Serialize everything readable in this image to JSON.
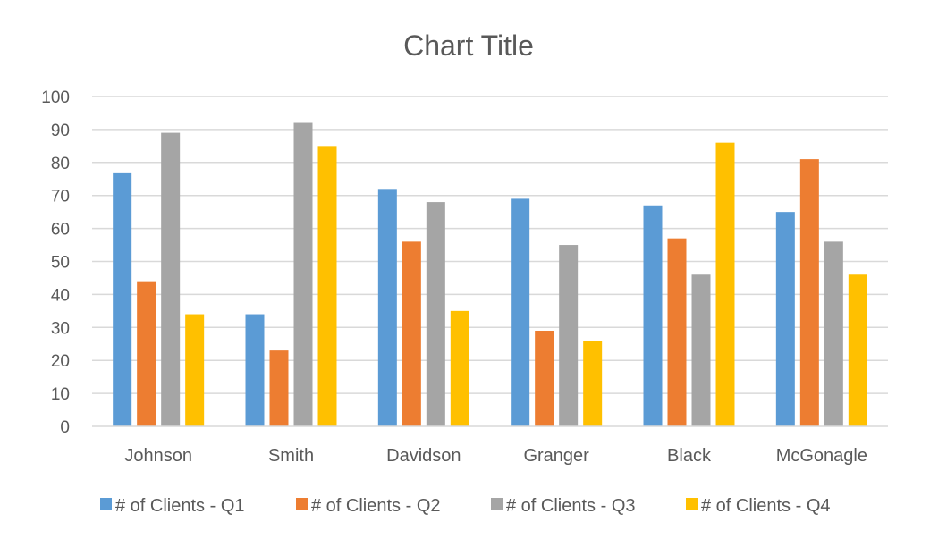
{
  "chart_data": {
    "type": "bar",
    "title": "Chart Title",
    "xlabel": "",
    "ylabel": "",
    "ylim": [
      0,
      100
    ],
    "yticks": [
      0,
      10,
      20,
      30,
      40,
      50,
      60,
      70,
      80,
      90,
      100
    ],
    "grid": true,
    "legend_position": "bottom",
    "categories": [
      "Johnson",
      "Smith",
      "Davidson",
      "Granger",
      "Black",
      "McGonagle"
    ],
    "series": [
      {
        "name": "# of Clients - Q1",
        "color": "#5b9bd5",
        "values": [
          77,
          34,
          72,
          69,
          67,
          65
        ]
      },
      {
        "name": "# of Clients - Q2",
        "color": "#ed7d31",
        "values": [
          44,
          23,
          56,
          29,
          57,
          81
        ]
      },
      {
        "name": "# of Clients - Q3",
        "color": "#a5a5a5",
        "values": [
          89,
          92,
          68,
          55,
          46,
          56
        ]
      },
      {
        "name": "# of Clients - Q4",
        "color": "#ffc000",
        "values": [
          34,
          85,
          35,
          26,
          86,
          46
        ]
      }
    ]
  }
}
